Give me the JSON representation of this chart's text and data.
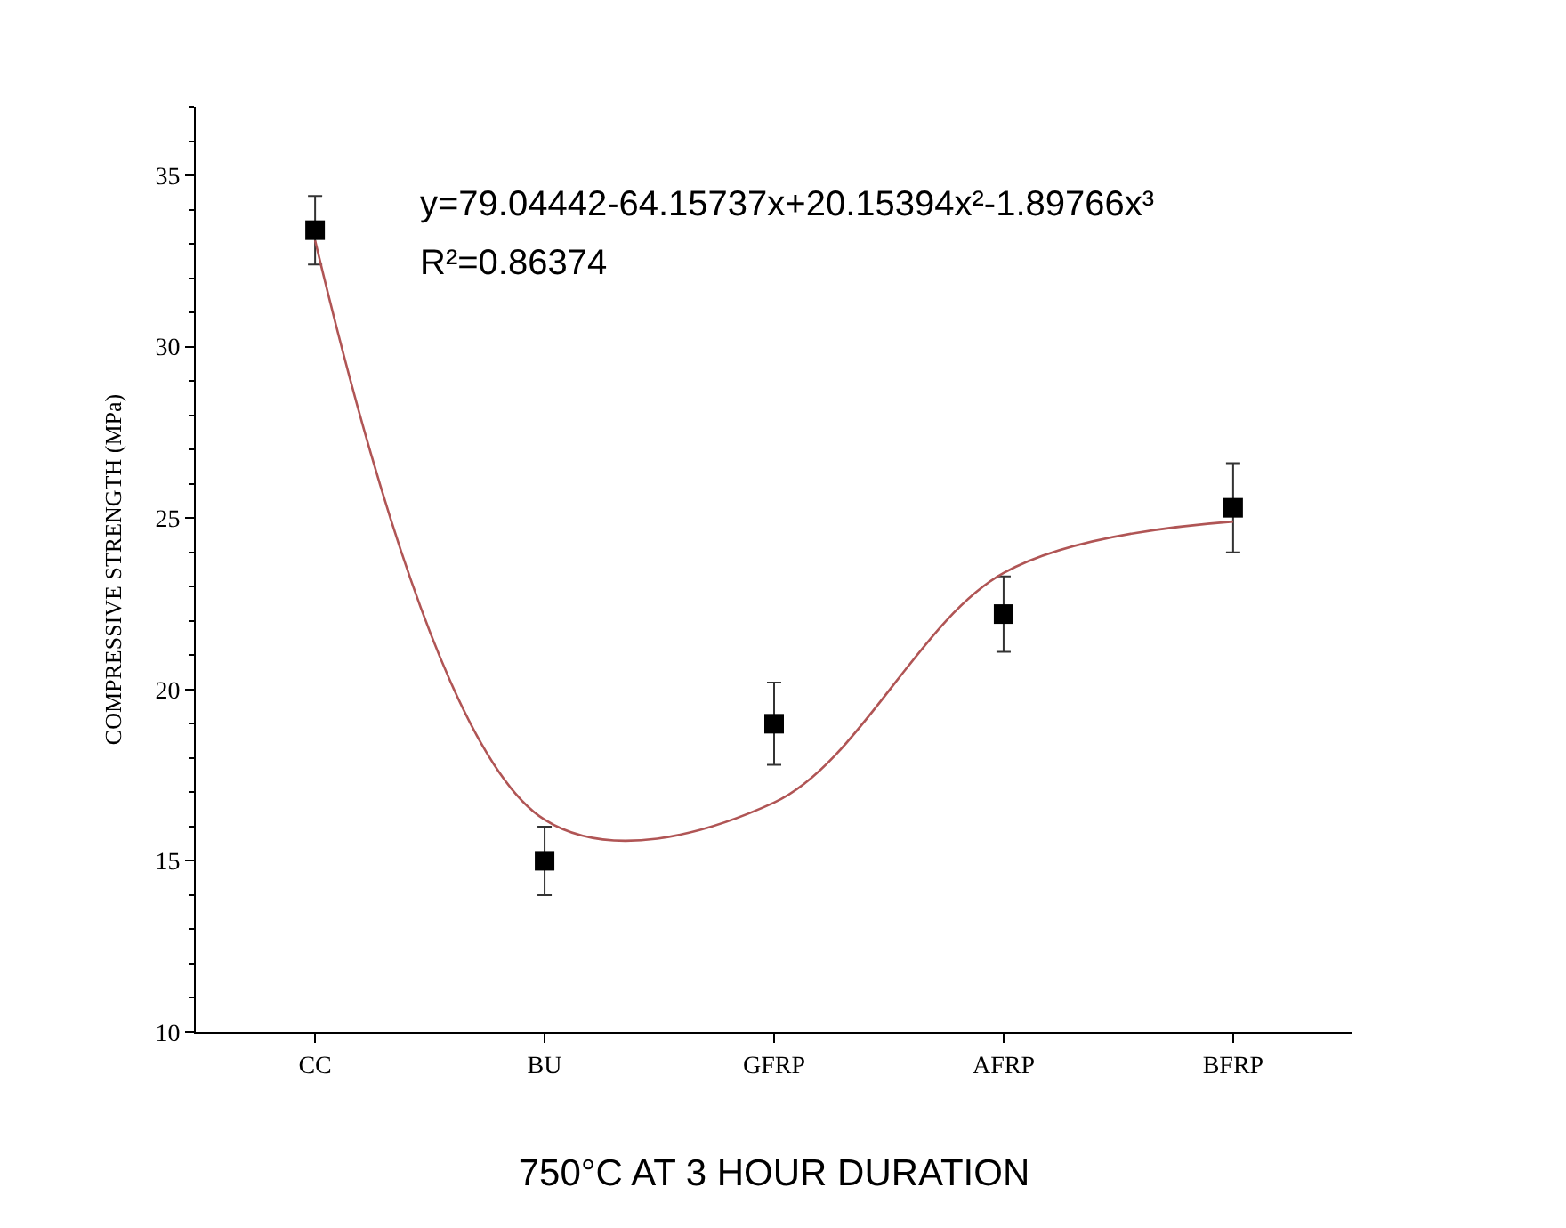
{
  "chart_data": {
    "type": "scatter",
    "xlabel": "750°C AT 3 HOUR DURATION",
    "ylabel": "COMPRESSIVE STRENGTH (MPa)",
    "categories": [
      "CC",
      "BU",
      "GFRP",
      "AFRP",
      "BFRP"
    ],
    "ylim": [
      10,
      37
    ],
    "yticks": [
      10,
      15,
      20,
      25,
      30,
      35
    ],
    "series": [
      {
        "color": "#000000",
        "marker": "square",
        "values": [
          33.4,
          15.0,
          19.0,
          22.2,
          25.3
        ],
        "errors": [
          1.0,
          1.0,
          1.2,
          1.1,
          1.3
        ]
      },
      {
        "type": "line",
        "color": "#b05555",
        "line_style": "solid",
        "values": [
          33.1,
          16.2,
          16.7,
          23.4,
          24.9
        ]
      }
    ],
    "annotations": [
      "y=79.04442-64.15737x+20.15394x²-1.89766x³",
      "R²=0.86374"
    ]
  }
}
